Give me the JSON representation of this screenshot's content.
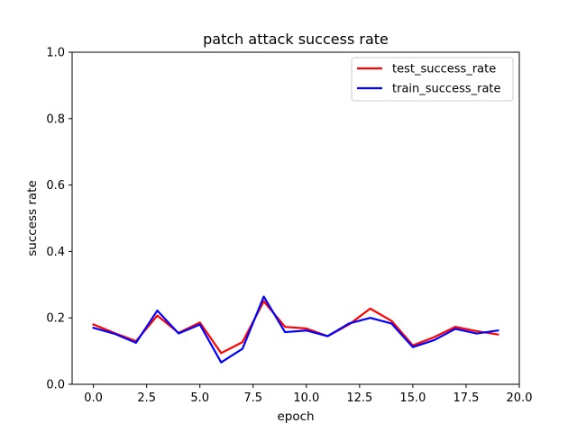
{
  "chart_data": {
    "type": "line",
    "title": "patch attack success rate",
    "xlabel": "epoch",
    "ylabel": "success rate",
    "xlim": [
      -1.0,
      20.0
    ],
    "ylim": [
      0.0,
      1.0
    ],
    "xticks": [
      0.0,
      2.5,
      5.0,
      7.5,
      10.0,
      12.5,
      15.0,
      17.5,
      20.0
    ],
    "xtick_labels": [
      "0.0",
      "2.5",
      "5.0",
      "7.5",
      "10.0",
      "12.5",
      "15.0",
      "17.5",
      "20.0"
    ],
    "yticks": [
      0.0,
      0.2,
      0.4,
      0.6,
      0.8,
      1.0
    ],
    "ytick_labels": [
      "0.0",
      "0.2",
      "0.4",
      "0.6",
      "0.8",
      "1.0"
    ],
    "grid": false,
    "legend_position": "top-right",
    "x": [
      0,
      1,
      2,
      3,
      4,
      5,
      6,
      7,
      8,
      9,
      10,
      11,
      12,
      13,
      14,
      15,
      16,
      17,
      18,
      19
    ],
    "series": [
      {
        "name": "test_success_rate",
        "color": "#ff0000",
        "values": [
          0.18,
          0.154,
          0.13,
          0.207,
          0.155,
          0.186,
          0.094,
          0.127,
          0.25,
          0.173,
          0.168,
          0.145,
          0.18,
          0.228,
          0.191,
          0.117,
          0.142,
          0.173,
          0.16,
          0.15
        ]
      },
      {
        "name": "train_success_rate",
        "color": "#0000ff",
        "values": [
          0.17,
          0.152,
          0.125,
          0.222,
          0.153,
          0.18,
          0.066,
          0.107,
          0.264,
          0.157,
          0.162,
          0.145,
          0.183,
          0.2,
          0.183,
          0.112,
          0.133,
          0.167,
          0.153,
          0.162
        ]
      }
    ]
  }
}
